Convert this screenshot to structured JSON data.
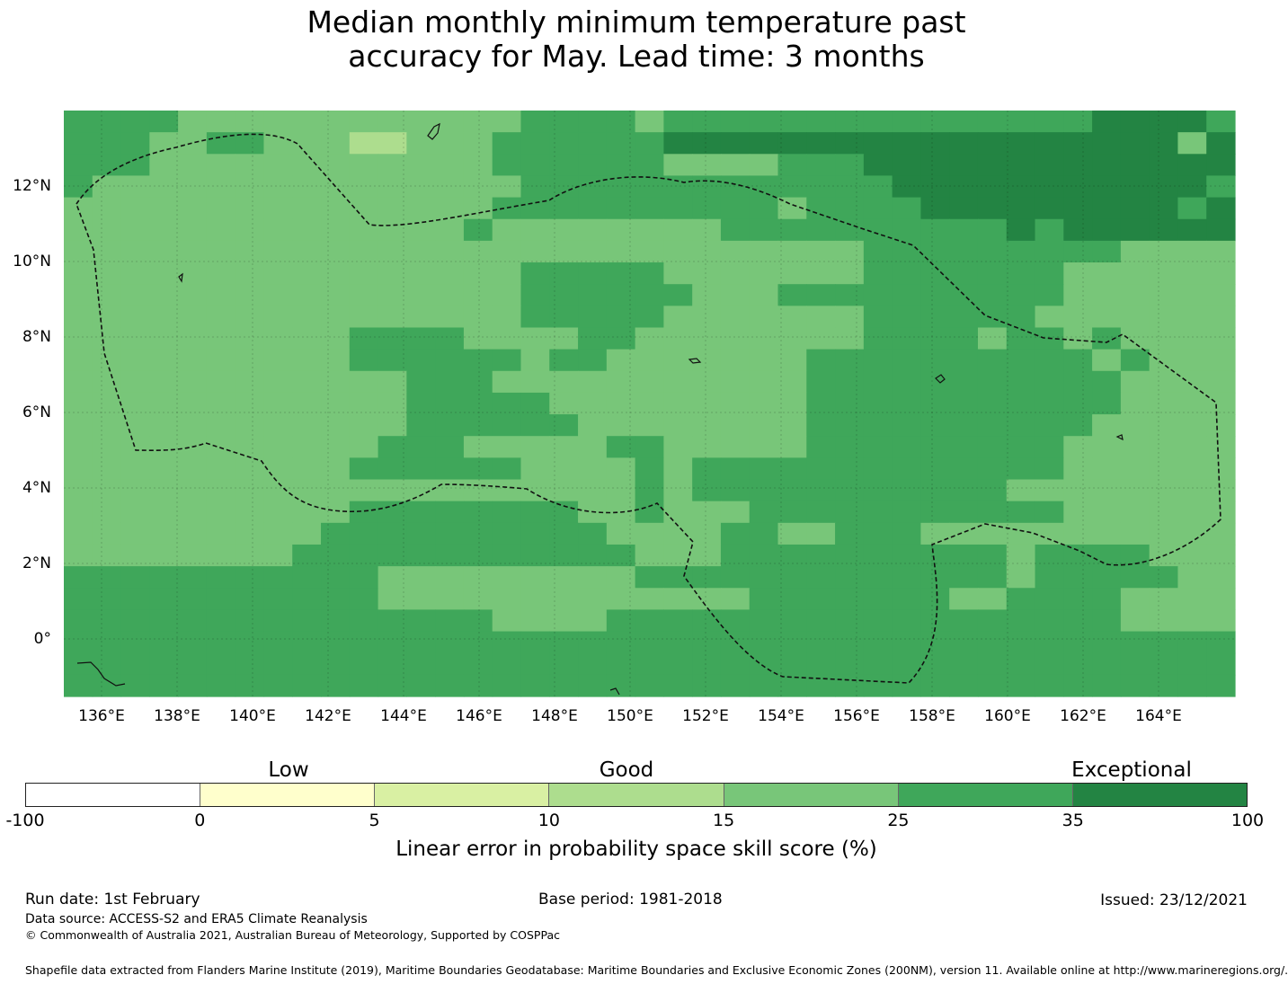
{
  "title": {
    "line1": "Median monthly minimum temperature past",
    "line2": "accuracy for May. Lead time: 3 months"
  },
  "map": {
    "lat_labels": [
      "12°N",
      "10°N",
      "8°N",
      "6°N",
      "4°N",
      "2°N",
      "0°"
    ],
    "lon_labels": [
      "136°E",
      "138°E",
      "140°E",
      "142°E",
      "144°E",
      "146°E",
      "148°E",
      "150°E",
      "152°E",
      "154°E",
      "156°E",
      "158°E",
      "160°E",
      "162°E",
      "164°E"
    ],
    "lon_range": [
      135.0,
      166.0
    ],
    "lat_range": [
      -1.5,
      14.0
    ],
    "grid_cells_note": "",
    "grid": [
      "55554444444444445555455555555555555566665",
      "55544554443344455555566666666666666666646",
      "55544444444444455555544445556666666666666",
      "54444444444444445555555555555666666666665",
      "44444444444444455555555554555566666666656",
      "44444444444444544444444555555555565666666",
      "44444444444444444444444444445555555554444",
      "44444444444444445555544444445555555444444",
      "44444444444444445555554445555555555444444",
      "44444444444444445555544444445555554444444",
      "44444444445555444455444444445555455454444",
      "44444444445555554554444444555555555545444",
      "44444444444455544444444444555555555554444",
      "44444444444455555444444444555555555554444",
      "44444444444455555544444444555555555544444",
      "44444444444555444445544444555555555444444",
      "44444444445555554444545555555555555444444",
      "44444444444444444444545555555555544444444",
      "44444444445555555544544455555555555444444",
      "44444444455555555554444554455544444444444",
      "44444444555555555555444555555555545555444",
      "55555555555444444444555555555555545555544",
      "55555555555444444444444455555554455554444",
      "55555555555555544445555555555555555554444",
      "55555555555555555555555555555555555555555",
      "55555555555555555555555555555555555555555",
      "55555555555555555555555555555555555555555"
    ],
    "dominant_colors": [
      "#ffffff",
      "#ffffcc",
      "#d9f0a3",
      "#addd8e",
      "#78c679",
      "#3fa75a",
      "#238443"
    ]
  },
  "colorbar": {
    "categories": [
      {
        "label": "Low",
        "position": 0.2
      },
      {
        "label": "Good",
        "position": 0.5
      },
      {
        "label": "Exceptional",
        "position": 0.9
      }
    ],
    "segments": [
      {
        "from": "-100",
        "to": "0",
        "color": "#ffffff"
      },
      {
        "from": "0",
        "to": "5",
        "color": "#ffffcc"
      },
      {
        "from": "5",
        "to": "10",
        "color": "#d9f0a3"
      },
      {
        "from": "10",
        "to": "15",
        "color": "#addd8e"
      },
      {
        "from": "15",
        "to": "25",
        "color": "#78c679"
      },
      {
        "from": "25",
        "to": "35",
        "color": "#3fa75a"
      },
      {
        "from": "35",
        "to": "100",
        "color": "#238443"
      }
    ],
    "ticks": [
      "-100",
      "0",
      "5",
      "10",
      "15",
      "25",
      "35",
      "100"
    ],
    "label": "Linear error in probability space skill score (%)"
  },
  "footer": {
    "run_date": "Run date: 1st February",
    "base_period": "Base period: 1981-2018",
    "issued": "Issued: 23/12/2021",
    "data_source": "Data source: ACCESS-S2 and ERA5 Climate Reanalysis",
    "copyright": "© Commonwealth of Australia 2021, Australian Bureau of Meteorology, Supported by COSPPac",
    "shapefile": "Shapefile data extracted from Flanders Marine Institute (2019), Maritime Boundaries Geodatabase: Maritime Boundaries and Exclusive Economic Zones (200NM), version 11. Available online at http://www.marineregions.org/."
  }
}
